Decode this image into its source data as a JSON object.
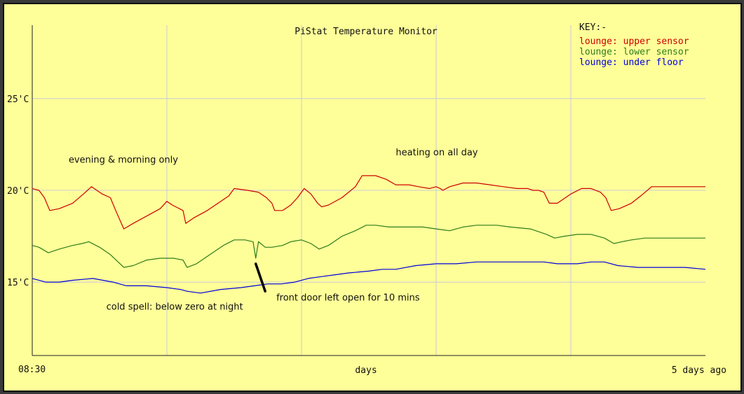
{
  "colors": {
    "background": "#ffff99",
    "grid": "#c8c8dc",
    "axis": "#222222",
    "text": "#111111",
    "upper": "#cc0000",
    "lower": "#2e7d1a",
    "under": "#0000dd"
  },
  "chart_data": {
    "type": "line",
    "title": "PiStat Temperature Monitor",
    "xlabel": "days",
    "x_start_label": "08:30",
    "x_end_label": "5 days ago",
    "x_direction": "reversed (now on left, 5 days ago on right)",
    "x_unit": "days ago",
    "xlim": [
      0,
      5
    ],
    "ylim": [
      11,
      29
    ],
    "yticks": [
      15,
      20,
      25
    ],
    "ytick_labels": [
      "15'C",
      "20'C",
      "25'C"
    ],
    "grid": true,
    "legend_title": "KEY:-",
    "legend_position": "top-right",
    "series": [
      {
        "name": "lounge: upper sensor",
        "color": "#cc0000",
        "points": [
          [
            0,
            20.1
          ],
          [
            0.05,
            20.0
          ],
          [
            0.09,
            19.6
          ],
          [
            0.13,
            18.9
          ],
          [
            0.2,
            19.0
          ],
          [
            0.3,
            19.3
          ],
          [
            0.38,
            19.8
          ],
          [
            0.44,
            20.2
          ],
          [
            0.52,
            19.8
          ],
          [
            0.58,
            19.6
          ],
          [
            0.62,
            18.9
          ],
          [
            0.68,
            17.9
          ],
          [
            0.75,
            18.2
          ],
          [
            0.85,
            18.6
          ],
          [
            0.95,
            19.0
          ],
          [
            1.0,
            19.4
          ],
          [
            1.04,
            19.2
          ],
          [
            1.12,
            18.9
          ],
          [
            1.14,
            18.2
          ],
          [
            1.2,
            18.5
          ],
          [
            1.3,
            18.9
          ],
          [
            1.4,
            19.4
          ],
          [
            1.46,
            19.7
          ],
          [
            1.5,
            20.1
          ],
          [
            1.6,
            20.0
          ],
          [
            1.68,
            19.9
          ],
          [
            1.74,
            19.6
          ],
          [
            1.78,
            19.3
          ],
          [
            1.8,
            18.9
          ],
          [
            1.86,
            18.9
          ],
          [
            1.92,
            19.2
          ],
          [
            1.97,
            19.6
          ],
          [
            2.02,
            20.1
          ],
          [
            2.07,
            19.8
          ],
          [
            2.12,
            19.3
          ],
          [
            2.15,
            19.1
          ],
          [
            2.2,
            19.2
          ],
          [
            2.3,
            19.6
          ],
          [
            2.4,
            20.2
          ],
          [
            2.45,
            20.8
          ],
          [
            2.55,
            20.8
          ],
          [
            2.63,
            20.6
          ],
          [
            2.7,
            20.3
          ],
          [
            2.8,
            20.3
          ],
          [
            2.87,
            20.2
          ],
          [
            2.95,
            20.1
          ],
          [
            3.0,
            20.2
          ],
          [
            3.03,
            20.1
          ],
          [
            3.05,
            20.0
          ],
          [
            3.1,
            20.2
          ],
          [
            3.2,
            20.4
          ],
          [
            3.3,
            20.4
          ],
          [
            3.4,
            20.3
          ],
          [
            3.5,
            20.2
          ],
          [
            3.6,
            20.1
          ],
          [
            3.68,
            20.1
          ],
          [
            3.72,
            20.0
          ],
          [
            3.76,
            20.0
          ],
          [
            3.8,
            19.9
          ],
          [
            3.84,
            19.3
          ],
          [
            3.9,
            19.3
          ],
          [
            4.0,
            19.8
          ],
          [
            4.08,
            20.1
          ],
          [
            4.15,
            20.1
          ],
          [
            4.22,
            19.9
          ],
          [
            4.26,
            19.6
          ],
          [
            4.3,
            18.9
          ],
          [
            4.36,
            19.0
          ],
          [
            4.45,
            19.3
          ],
          [
            4.52,
            19.7
          ],
          [
            4.6,
            20.2
          ],
          [
            5.0,
            20.2
          ]
        ]
      },
      {
        "name": "lounge: lower sensor",
        "color": "#2e7d1a",
        "points": [
          [
            0,
            17.0
          ],
          [
            0.05,
            16.9
          ],
          [
            0.12,
            16.6
          ],
          [
            0.2,
            16.8
          ],
          [
            0.3,
            17.0
          ],
          [
            0.37,
            17.1
          ],
          [
            0.42,
            17.2
          ],
          [
            0.5,
            16.9
          ],
          [
            0.58,
            16.5
          ],
          [
            0.68,
            15.8
          ],
          [
            0.75,
            15.9
          ],
          [
            0.85,
            16.2
          ],
          [
            0.95,
            16.3
          ],
          [
            1.05,
            16.3
          ],
          [
            1.12,
            16.2
          ],
          [
            1.15,
            15.8
          ],
          [
            1.22,
            16.0
          ],
          [
            1.32,
            16.5
          ],
          [
            1.42,
            17.0
          ],
          [
            1.5,
            17.3
          ],
          [
            1.58,
            17.3
          ],
          [
            1.64,
            17.2
          ],
          [
            1.66,
            16.3
          ],
          [
            1.68,
            17.2
          ],
          [
            1.73,
            16.9
          ],
          [
            1.78,
            16.9
          ],
          [
            1.86,
            17.0
          ],
          [
            1.92,
            17.2
          ],
          [
            2.0,
            17.3
          ],
          [
            2.07,
            17.1
          ],
          [
            2.13,
            16.8
          ],
          [
            2.2,
            17.0
          ],
          [
            2.3,
            17.5
          ],
          [
            2.4,
            17.8
          ],
          [
            2.48,
            18.1
          ],
          [
            2.55,
            18.1
          ],
          [
            2.65,
            18.0
          ],
          [
            2.75,
            18.0
          ],
          [
            2.9,
            18.0
          ],
          [
            3.0,
            17.9
          ],
          [
            3.1,
            17.8
          ],
          [
            3.2,
            18.0
          ],
          [
            3.3,
            18.1
          ],
          [
            3.45,
            18.1
          ],
          [
            3.55,
            18.0
          ],
          [
            3.7,
            17.9
          ],
          [
            3.78,
            17.7
          ],
          [
            3.82,
            17.6
          ],
          [
            3.88,
            17.4
          ],
          [
            3.95,
            17.5
          ],
          [
            4.05,
            17.6
          ],
          [
            4.15,
            17.6
          ],
          [
            4.25,
            17.4
          ],
          [
            4.32,
            17.1
          ],
          [
            4.38,
            17.2
          ],
          [
            4.45,
            17.3
          ],
          [
            4.55,
            17.4
          ],
          [
            5.0,
            17.4
          ]
        ]
      },
      {
        "name": "lounge: under floor",
        "color": "#0000dd",
        "points": [
          [
            0,
            15.2
          ],
          [
            0.1,
            15.0
          ],
          [
            0.2,
            15.0
          ],
          [
            0.3,
            15.1
          ],
          [
            0.45,
            15.2
          ],
          [
            0.6,
            15.0
          ],
          [
            0.7,
            14.8
          ],
          [
            0.85,
            14.8
          ],
          [
            1.0,
            14.7
          ],
          [
            1.1,
            14.6
          ],
          [
            1.15,
            14.5
          ],
          [
            1.25,
            14.4
          ],
          [
            1.4,
            14.6
          ],
          [
            1.55,
            14.7
          ],
          [
            1.65,
            14.8
          ],
          [
            1.75,
            14.9
          ],
          [
            1.85,
            14.9
          ],
          [
            1.95,
            15.0
          ],
          [
            2.05,
            15.2
          ],
          [
            2.15,
            15.3
          ],
          [
            2.25,
            15.4
          ],
          [
            2.35,
            15.5
          ],
          [
            2.5,
            15.6
          ],
          [
            2.6,
            15.7
          ],
          [
            2.7,
            15.7
          ],
          [
            2.85,
            15.9
          ],
          [
            3.0,
            16.0
          ],
          [
            3.15,
            16.0
          ],
          [
            3.3,
            16.1
          ],
          [
            3.45,
            16.1
          ],
          [
            3.6,
            16.1
          ],
          [
            3.8,
            16.1
          ],
          [
            3.9,
            16.0
          ],
          [
            4.05,
            16.0
          ],
          [
            4.15,
            16.1
          ],
          [
            4.25,
            16.1
          ],
          [
            4.35,
            15.9
          ],
          [
            4.5,
            15.8
          ],
          [
            4.7,
            15.8
          ],
          [
            4.85,
            15.8
          ],
          [
            5.0,
            15.7
          ]
        ]
      }
    ],
    "annotations": [
      {
        "text": "evening & morning only",
        "x": 0.27,
        "y": 21.5
      },
      {
        "text": "heating on all day",
        "x": 2.7,
        "y": 21.9
      },
      {
        "text": "front door left open for 10 mins",
        "x": 1.74,
        "y": 14.0
      },
      {
        "text": "cold spell: below zero at night",
        "x": 0.55,
        "y": 13.5
      }
    ],
    "pointer": {
      "from": [
        1.73,
        14.5
      ],
      "to": [
        1.66,
        16.0
      ]
    }
  }
}
